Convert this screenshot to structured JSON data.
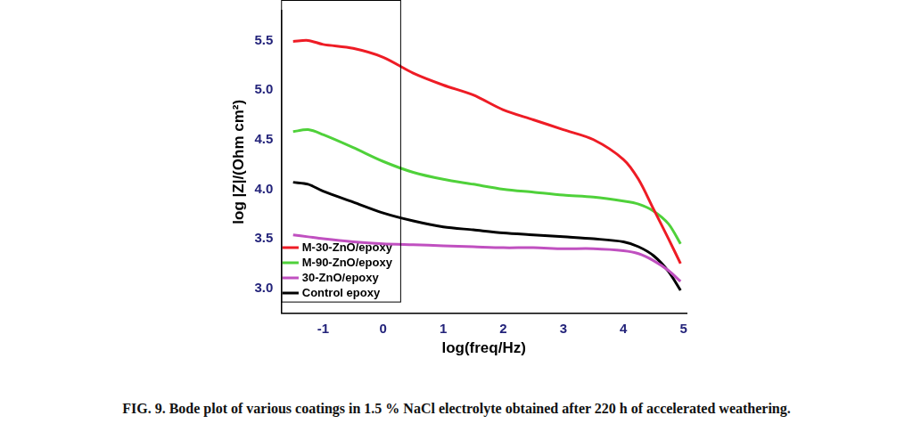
{
  "chart_data": {
    "type": "line",
    "caption": "FIG. 9. Bode plot of various coatings in 1.5 % NaCl electrolyte obtained after 220 h of accelerated weathering.",
    "x_label": "log(freq/Hz)",
    "y_label": "log |Z|/(Ohm cm²)",
    "x": [
      -1.5,
      -1.25,
      -1.0,
      -0.5,
      0,
      0.5,
      1.0,
      1.5,
      2.0,
      2.5,
      3.0,
      3.5,
      4.0,
      4.25,
      4.5,
      4.75,
      4.95
    ],
    "series": [
      {
        "name": "M-30-ZnO/epoxy",
        "color": "#ee1c25",
        "values": [
          5.49,
          5.5,
          5.46,
          5.42,
          5.33,
          5.17,
          5.05,
          4.95,
          4.8,
          4.7,
          4.6,
          4.5,
          4.3,
          4.1,
          3.8,
          3.5,
          3.25
        ]
      },
      {
        "name": "M-90-ZnO/epoxy",
        "color": "#4fd13a",
        "values": [
          4.58,
          4.6,
          4.55,
          4.42,
          4.28,
          4.17,
          4.1,
          4.05,
          4.0,
          3.97,
          3.94,
          3.92,
          3.88,
          3.85,
          3.78,
          3.65,
          3.45
        ]
      },
      {
        "name": "30-ZnO/epoxy",
        "color": "#c050c0",
        "values": [
          3.54,
          3.52,
          3.5,
          3.47,
          3.45,
          3.44,
          3.43,
          3.42,
          3.41,
          3.41,
          3.4,
          3.4,
          3.38,
          3.35,
          3.28,
          3.18,
          3.07
        ]
      },
      {
        "name": "Control epoxy",
        "color": "#000000",
        "values": [
          4.07,
          4.05,
          3.98,
          3.87,
          3.76,
          3.68,
          3.62,
          3.59,
          3.56,
          3.54,
          3.52,
          3.5,
          3.47,
          3.42,
          3.33,
          3.17,
          2.98
        ]
      }
    ],
    "xlim": [
      -1.7,
      5.05
    ],
    "xticks": [
      -1,
      0,
      1,
      2,
      3,
      4,
      5
    ],
    "ylim": [
      2.75,
      5.8
    ],
    "yticks": [
      {
        "value": 3,
        "label": "3.0"
      },
      {
        "value": 3.5,
        "label": "3.5"
      },
      {
        "value": 4,
        "label": "4.0"
      },
      {
        "value": 4.5,
        "label": "4.5"
      },
      {
        "value": 5,
        "label": "5.0"
      },
      {
        "value": 5.5,
        "label": "5.5"
      }
    ],
    "grid": false,
    "legend": "upper right"
  }
}
